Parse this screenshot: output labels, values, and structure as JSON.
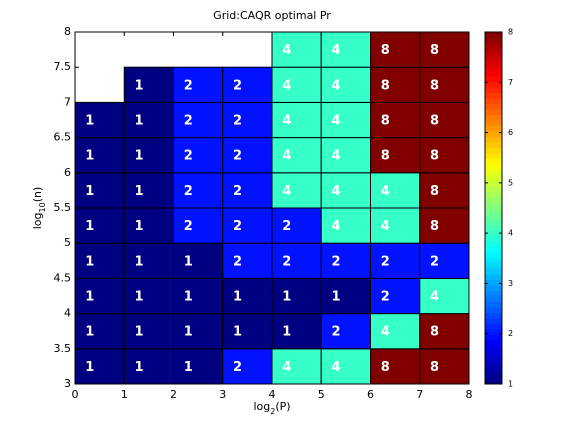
{
  "chart_data": {
    "type": "heatmap",
    "title": "Grid:CAQR optimal Pr",
    "xlabel": "log2(P)",
    "ylabel": "log10(n)",
    "xlim": [
      0,
      8
    ],
    "xticks": [
      0,
      1,
      2,
      3,
      4,
      5,
      6,
      7,
      8
    ],
    "ylim": [
      3,
      8
    ],
    "yticks": [
      3,
      3.5,
      4,
      4.5,
      5,
      5.5,
      6,
      6.5,
      7,
      7.5,
      8
    ],
    "x": [
      0,
      1,
      2,
      3,
      4,
      5,
      6,
      7
    ],
    "y": [
      3,
      3.5,
      4,
      4.5,
      5,
      5.5,
      6,
      6.5,
      7,
      7.5
    ],
    "z": [
      [
        1,
        1,
        1,
        2,
        4,
        4,
        8,
        8
      ],
      [
        1,
        1,
        1,
        1,
        1,
        2,
        4,
        8
      ],
      [
        1,
        1,
        1,
        1,
        1,
        1,
        2,
        4
      ],
      [
        1,
        1,
        1,
        2,
        2,
        2,
        2,
        2
      ],
      [
        1,
        1,
        2,
        2,
        2,
        4,
        4,
        8
      ],
      [
        1,
        1,
        2,
        2,
        4,
        4,
        4,
        8
      ],
      [
        1,
        1,
        2,
        2,
        4,
        4,
        8,
        8
      ],
      [
        1,
        1,
        2,
        2,
        4,
        4,
        8,
        8
      ],
      [
        null,
        1,
        2,
        2,
        4,
        4,
        8,
        8
      ],
      [
        null,
        null,
        null,
        null,
        4,
        4,
        8,
        8
      ]
    ],
    "colormap": "jet",
    "clim": [
      1,
      8
    ],
    "cticks": [
      1,
      2,
      3,
      4,
      5,
      6,
      7,
      8
    ]
  }
}
